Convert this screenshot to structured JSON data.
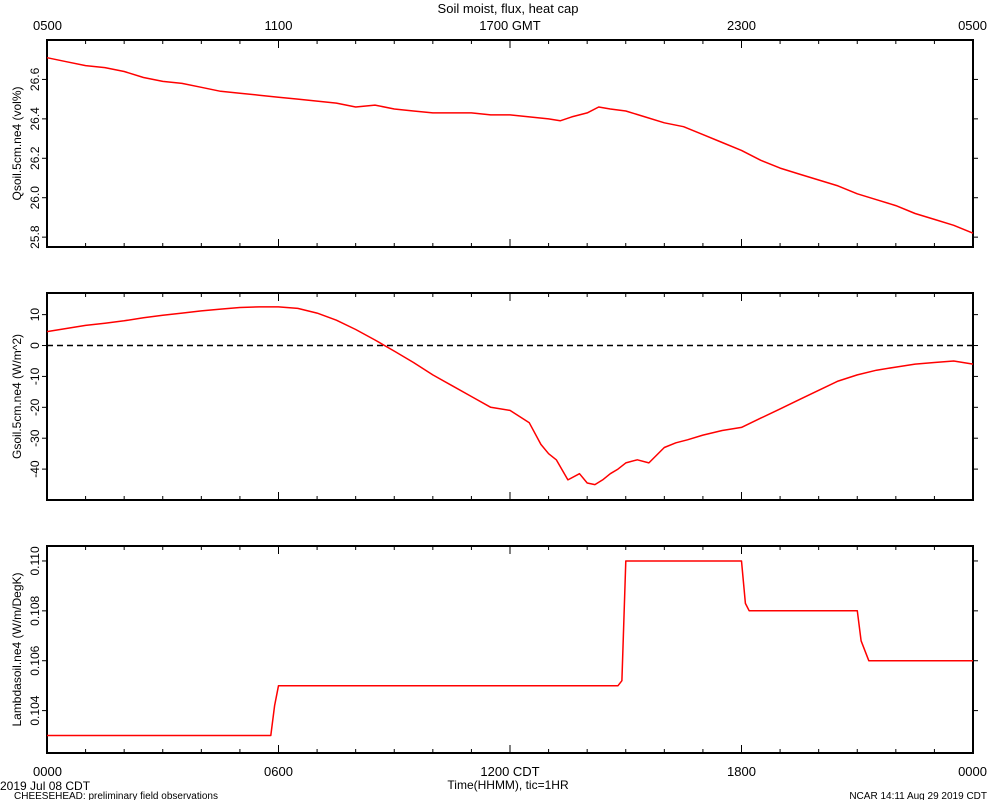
{
  "title": "Soil moist, flux, heat cap",
  "top_axis": {
    "ticks": [
      {
        "h": 0,
        "label": "0500"
      },
      {
        "h": 6,
        "label": "1100"
      },
      {
        "h": 12,
        "label": "1700 GMT"
      },
      {
        "h": 18,
        "label": "2300"
      },
      {
        "h": 24,
        "label": "0500"
      }
    ]
  },
  "bottom_axis": {
    "ticks": [
      {
        "h": 0,
        "label": "0000"
      },
      {
        "h": 6,
        "label": "0600"
      },
      {
        "h": 12,
        "label": "1200 CDT"
      },
      {
        "h": 18,
        "label": "1800"
      },
      {
        "h": 24,
        "label": "0000"
      }
    ],
    "xlabel": "Time(HHMM), tic=1HR"
  },
  "footer": {
    "date": "2019 Jul 08 CDT",
    "project": "CHEESEHEAD: preliminary field observations",
    "credit": "NCAR 14:11 Aug 29 2019 CDT"
  },
  "colors": {
    "series": "#ff0000",
    "axis": "#000000",
    "zero_line": "#000000"
  },
  "chart_data": [
    {
      "type": "line",
      "ylabel": "Qsoil.5cm.ne4 (vol%)",
      "ylim": [
        25.75,
        26.8
      ],
      "yticks": [
        25.8,
        26.0,
        26.2,
        26.4,
        26.6
      ],
      "ytick_labels": [
        "25.8",
        "26.0",
        "26.2",
        "26.4",
        "26.6"
      ],
      "xlim": [
        0,
        24
      ],
      "step": false,
      "series": [
        {
          "x": [
            0,
            0.5,
            1,
            1.5,
            2,
            2.5,
            3,
            3.5,
            4,
            4.5,
            5,
            5.5,
            6,
            6.5,
            7,
            7.5,
            8,
            8.5,
            9,
            9.5,
            10,
            10.5,
            11,
            11.5,
            12,
            12.5,
            13,
            13.3,
            13.6,
            14,
            14.3,
            14.6,
            15,
            15.5,
            16,
            16.5,
            17,
            17.5,
            18,
            18.5,
            19,
            19.5,
            20,
            20.5,
            21,
            21.5,
            22,
            22.5,
            23,
            23.5,
            24
          ],
          "y": [
            26.71,
            26.69,
            26.67,
            26.66,
            26.64,
            26.61,
            26.59,
            26.58,
            26.56,
            26.54,
            26.53,
            26.52,
            26.51,
            26.5,
            26.49,
            26.48,
            26.46,
            26.47,
            26.45,
            26.44,
            26.43,
            26.43,
            26.43,
            26.42,
            26.42,
            26.41,
            26.4,
            26.39,
            26.41,
            26.43,
            26.46,
            26.45,
            26.44,
            26.41,
            26.38,
            26.36,
            26.32,
            26.28,
            26.24,
            26.19,
            26.15,
            26.12,
            26.09,
            26.06,
            26.02,
            25.99,
            25.96,
            25.92,
            25.89,
            25.86,
            25.82
          ]
        }
      ]
    },
    {
      "type": "line",
      "ylabel": "Gsoil.5cm.ne4 (W/m^2)",
      "ylim": [
        -50,
        17
      ],
      "yticks": [
        -40,
        -30,
        -20,
        -10,
        0,
        10
      ],
      "ytick_labels": [
        "-40",
        "-30",
        "-20",
        "-10",
        "0",
        "10"
      ],
      "xlim": [
        0,
        24
      ],
      "step": false,
      "reference_line": 0,
      "series": [
        {
          "x": [
            0,
            0.5,
            1,
            1.5,
            2,
            2.5,
            3,
            3.5,
            4,
            4.5,
            5,
            5.5,
            6,
            6.5,
            7,
            7.5,
            8,
            8.5,
            9,
            9.5,
            10,
            10.5,
            11,
            11.5,
            12,
            12.5,
            12.8,
            13,
            13.2,
            13.5,
            13.8,
            14,
            14.2,
            14.4,
            14.6,
            14.8,
            15,
            15.3,
            15.6,
            16,
            16.3,
            16.6,
            17,
            17.5,
            18,
            18.5,
            19,
            19.5,
            20,
            20.5,
            21,
            21.5,
            22,
            22.5,
            23,
            23.5,
            24
          ],
          "y": [
            4.5,
            5.5,
            6.5,
            7.2,
            8,
            9,
            9.8,
            10.5,
            11.2,
            11.8,
            12.3,
            12.5,
            12.5,
            12,
            10.5,
            8.2,
            5.2,
            1.8,
            -1.8,
            -5.5,
            -9.5,
            -13,
            -16.5,
            -20,
            -21,
            -25,
            -32,
            -35,
            -37,
            -43.5,
            -41.5,
            -44.5,
            -45,
            -43.5,
            -41.5,
            -40,
            -38,
            -37,
            -38,
            -33,
            -31.5,
            -30.5,
            -29,
            -27.5,
            -26.5,
            -23.5,
            -20.5,
            -17.5,
            -14.5,
            -11.5,
            -9.5,
            -8,
            -7,
            -6,
            -5.5,
            -5,
            -6
          ]
        }
      ]
    },
    {
      "type": "line",
      "ylabel": "Lambdasoil.ne4 (W/m/DegK)",
      "ylim": [
        0.1023,
        0.1106
      ],
      "yticks": [
        0.104,
        0.106,
        0.108,
        0.11
      ],
      "ytick_labels": [
        "0.104",
        "0.106",
        "0.108",
        "0.110"
      ],
      "xlim": [
        0,
        24
      ],
      "step": false,
      "series": [
        {
          "x": [
            0,
            5.8,
            5.9,
            6.0,
            14.8,
            14.9,
            15.0,
            18.0,
            18.1,
            18.2,
            21.0,
            21.1,
            21.3,
            24
          ],
          "y": [
            0.103,
            0.103,
            0.1042,
            0.105,
            0.105,
            0.1052,
            0.11,
            0.11,
            0.1083,
            0.108,
            0.108,
            0.1068,
            0.106,
            0.106
          ]
        }
      ]
    }
  ]
}
